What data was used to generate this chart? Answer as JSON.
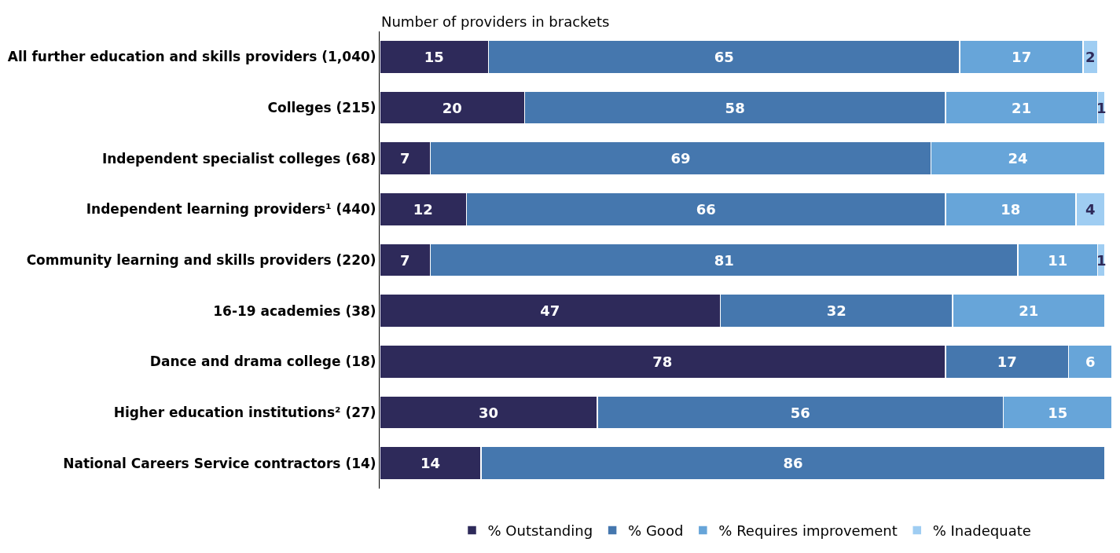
{
  "chart_data": {
    "type": "bar",
    "orientation": "horizontal",
    "stacked": true,
    "subtitle": "Number of providers in brackets",
    "categories": [
      "All further education and skills providers (1,040)",
      "Colleges (215)",
      "Independent specialist colleges (68)",
      "Independent learning providers¹ (440)",
      "Community learning and skills providers (220)",
      "16-19 academies (38)",
      "Dance and drama college (18)",
      "Higher education institutions² (27)",
      "National Careers Service contractors (14)"
    ],
    "series": [
      {
        "name": "% Outstanding",
        "color": "#2e2a5a",
        "values": [
          15,
          20,
          7,
          12,
          7,
          47,
          78,
          30,
          14
        ]
      },
      {
        "name": "% Good",
        "color": "#4577ae",
        "values": [
          65,
          58,
          69,
          66,
          81,
          32,
          17,
          56,
          86
        ]
      },
      {
        "name": "% Requires improvement",
        "color": "#67a5d9",
        "values": [
          17,
          21,
          24,
          18,
          11,
          21,
          6,
          15,
          null
        ]
      },
      {
        "name": "% Inadequate",
        "color": "#9fcdf2",
        "values": [
          2,
          1,
          null,
          4,
          1,
          null,
          null,
          null,
          null
        ]
      }
    ],
    "xlim": [
      0,
      101
    ],
    "data_labels": true,
    "legend": "bottom",
    "tick_labels": "y"
  }
}
